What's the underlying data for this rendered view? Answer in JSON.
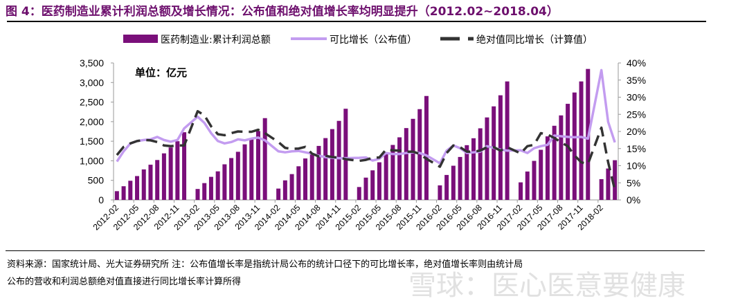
{
  "title": "图 4：医药制造业累计利润总额及增长情况：公布值和绝对值增长率均明显提升（2012.02~2018.04）",
  "source_line1": "资料来源：国家统计局、光大证券研究所  注：公布值增长率是指统计局公布的统计口径下的可比增长率，绝对值增长率则由统计局",
  "source_line2": "公布的营收和利润总额绝对值直接进行同比增长率计算所得",
  "watermark": "雪球：医心医意要健康",
  "chart_data": {
    "type": "bar+line",
    "unit_note": "单位：亿元",
    "x_start": "2012-02",
    "x_end": "2018-04",
    "january_omitted": true,
    "x_tick_labels": [
      "2012-02",
      "2012-05",
      "2012-08",
      "2012-11",
      "2013-02",
      "2013-05",
      "2013-08",
      "2013-11",
      "2014-02",
      "2014-05",
      "2014-08",
      "2014-11",
      "2015-02",
      "2015-05",
      "2015-08",
      "2015-11",
      "2016-02",
      "2016-05",
      "2016-08",
      "2016-11",
      "2017-02",
      "2017-05",
      "2017-08",
      "2017-11",
      "2018-02"
    ],
    "y_left": {
      "range": [
        0,
        3500
      ],
      "ticks": [
        "0",
        "500",
        "1,000",
        "1,500",
        "2,000",
        "2,500",
        "3,000",
        "3,500"
      ]
    },
    "y_right": {
      "range": [
        0,
        40
      ],
      "ticks": [
        "0%",
        "5%",
        "10%",
        "15%",
        "20%",
        "25%",
        "30%",
        "35%",
        "40%"
      ]
    },
    "legend_position": "top",
    "colors": {
      "bar": "#7a0f7a",
      "line": "#c39cf0",
      "dashed": "#333333"
    },
    "series": [
      {
        "name": "医药制造业:累计利润总额",
        "kind": "bar",
        "axis": "left",
        "values": [
          [
            224,
            350,
            490,
            610,
            780,
            900,
            1020,
            1190,
            1340,
            1500,
            1730
          ],
          [
            280,
            430,
            590,
            730,
            910,
            1070,
            1230,
            1420,
            1570,
            1760,
            2090
          ],
          [
            290,
            500,
            660,
            860,
            1060,
            1190,
            1380,
            1580,
            1810,
            2020,
            2330
          ],
          [
            330,
            570,
            756,
            962,
            1169,
            1405,
            1600,
            1836,
            2072,
            2320,
            2656
          ],
          [
            372,
            638,
            874,
            1098,
            1399,
            1576,
            1830,
            2108,
            2391,
            2674,
            3028
          ],
          [
            449,
            726,
            998,
            1281,
            1624,
            1895,
            2160,
            2456,
            2745,
            3028,
            3347
          ],
          [
            531,
            803,
            1015
          ]
        ]
      },
      {
        "name": "可比增长（公布值）",
        "kind": "line",
        "axis": "right",
        "values": [
          [
            11.2,
            14.2,
            16.5,
            17.2,
            17.5,
            17.7,
            18.4,
            17.5,
            17.0,
            17.5,
            20.9
          ],
          [
            24.3,
            22.5,
            19.5,
            17.2,
            16.5,
            16.9,
            17.7,
            17.4,
            17.9,
            18.2,
            17.4
          ],
          [
            14.2,
            13.9,
            14.2,
            14.3,
            13.9,
            13.5,
            12.9,
            12.5,
            12.3,
            12.2,
            12.2
          ],
          [
            12.3,
            12.4,
            11.5,
            12.0,
            13.7,
            13.4,
            13.4,
            13.7,
            13.9,
            13.7,
            13.0
          ],
          [
            10.7,
            14.4,
            15.9,
            15.1,
            13.7,
            13.9,
            14.1,
            15.7,
            15.2,
            14.7,
            14.4
          ],
          [
            14.5,
            13.7,
            15.1,
            15.7,
            16.1,
            18.8,
            18.6,
            18.4,
            18.3,
            18.4,
            17.9
          ],
          [
            37.9,
            22.8,
            16.8
          ]
        ]
      },
      {
        "name": "绝对值同比增长（计算值）",
        "kind": "dashed",
        "axis": "right",
        "values": [
          [
            13.1,
            15.5,
            16.5,
            17.2,
            17.5,
            17.4,
            16.9,
            15.9,
            15.7,
            15.9,
            15.9
          ],
          [
            25.9,
            24.7,
            21.5,
            19.2,
            18.9,
            19.5,
            20.0,
            19.9,
            19.9,
            20.5,
            19.5
          ],
          [
            16.9,
            15.2,
            14.9,
            15.0,
            15.5,
            13.5,
            12.7,
            12.9,
            12.5,
            12.4,
            11.9
          ],
          [
            11.4,
            11.7,
            12.3,
            12.4,
            14.7,
            14.5,
            14.4,
            14.1,
            14.1,
            13.4,
            12.0
          ],
          [
            9.7,
            13.7,
            15.9,
            15.4,
            14.1,
            14.1,
            14.4,
            15.4,
            15.4,
            14.4,
            15.4
          ],
          [
            13.6,
            15.7,
            16.1,
            19.5,
            19.1,
            18.1,
            16.8,
            15.7,
            13.0,
            11.0,
            10.5
          ],
          [
            21.1,
            11.0,
            2.9
          ]
        ]
      }
    ]
  }
}
